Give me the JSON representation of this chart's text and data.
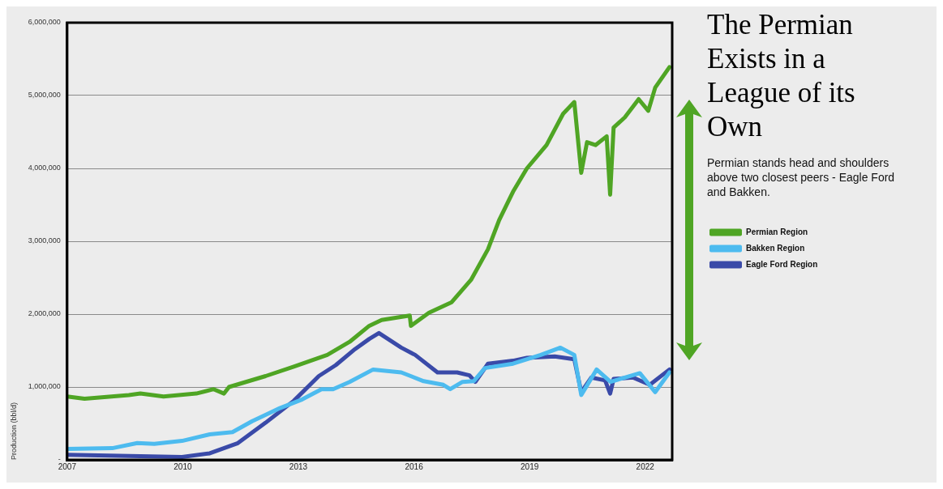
{
  "chart_data": {
    "type": "line",
    "title": "The Permian Exists in a League of its Own",
    "subtitle": "Permian stands head and shoulders above two closest peers - Eagle Ford and Bakken.",
    "ylabel": "Production (bbl/d)",
    "xlim": [
      2007,
      2022.7
    ],
    "xticks": [
      2007,
      2010,
      2013,
      2016,
      2019,
      2022
    ],
    "ylim": [
      0,
      6000000
    ],
    "yticks": [
      {
        "value": 0,
        "label": "-"
      },
      {
        "value": 1000000,
        "label": "1,000,000"
      },
      {
        "value": 2000000,
        "label": "2,000,000"
      },
      {
        "value": 3000000,
        "label": "3,000,000"
      },
      {
        "value": 4000000,
        "label": "4,000,000"
      },
      {
        "value": 5000000,
        "label": "5,000,000"
      },
      {
        "value": 6000000,
        "label": "6,000,000"
      }
    ],
    "grid": "y",
    "legend": "right",
    "marker": "none",
    "line_style": "solid",
    "series": [
      {
        "name": "Permian Region",
        "color": "#4fa524",
        "x": [
          2007.0,
          2007.45,
          2008.6,
          2008.9,
          2009.5,
          2010.35,
          2010.8,
          2011.07,
          2011.2,
          2012.15,
          2012.88,
          2013.75,
          2014.33,
          2014.84,
          2015.16,
          2015.89,
          2015.92,
          2016.39,
          2016.97,
          2017.48,
          2017.92,
          2018.21,
          2018.57,
          2018.93,
          2019.44,
          2019.87,
          2020.16,
          2020.34,
          2020.49,
          2020.71,
          2021.0,
          2021.09,
          2021.18,
          2021.47,
          2021.83,
          2022.08,
          2022.26,
          2022.63
        ],
        "values": [
          870000,
          840000,
          890000,
          910000,
          870000,
          910000,
          970000,
          910000,
          1000000,
          1150000,
          1280000,
          1440000,
          1620000,
          1840000,
          1920000,
          1980000,
          1840000,
          2020000,
          2160000,
          2470000,
          2890000,
          3290000,
          3680000,
          4000000,
          4320000,
          4750000,
          4910000,
          3940000,
          4360000,
          4320000,
          4440000,
          3640000,
          4560000,
          4700000,
          4950000,
          4790000,
          5110000,
          5390000
        ]
      },
      {
        "name": "Bakken Region",
        "color": "#4dbbef",
        "x": [
          2007.0,
          2008.17,
          2008.82,
          2009.26,
          2009.98,
          2010.7,
          2011.29,
          2011.8,
          2012.52,
          2013.1,
          2013.6,
          2013.9,
          2014.33,
          2014.94,
          2015.67,
          2016.25,
          2016.76,
          2016.94,
          2017.26,
          2017.55,
          2017.84,
          2018.57,
          2019.29,
          2019.8,
          2020.16,
          2020.34,
          2020.74,
          2021.1,
          2021.47,
          2021.86,
          2022.26,
          2022.63
        ],
        "values": [
          150000,
          160000,
          230000,
          220000,
          260000,
          350000,
          380000,
          530000,
          710000,
          830000,
          970000,
          970000,
          1070000,
          1240000,
          1200000,
          1080000,
          1030000,
          970000,
          1070000,
          1080000,
          1260000,
          1320000,
          1440000,
          1540000,
          1440000,
          890000,
          1240000,
          1070000,
          1130000,
          1190000,
          930000,
          1200000
        ]
      },
      {
        "name": "Eagle Ford Region",
        "color": "#3a4aa8",
        "x": [
          2007.0,
          2008.9,
          2009.98,
          2010.7,
          2011.43,
          2012.15,
          2012.88,
          2013.53,
          2013.97,
          2014.47,
          2014.84,
          2015.09,
          2015.67,
          2016.03,
          2016.61,
          2017.12,
          2017.44,
          2017.59,
          2017.92,
          2018.57,
          2018.93,
          2019.65,
          2020.16,
          2020.34,
          2020.6,
          2020.96,
          2021.09,
          2021.18,
          2021.68,
          2022.12,
          2022.63
        ],
        "values": [
          70000,
          50000,
          40000,
          90000,
          230000,
          510000,
          810000,
          1150000,
          1300000,
          1520000,
          1660000,
          1740000,
          1540000,
          1440000,
          1200000,
          1200000,
          1160000,
          1070000,
          1320000,
          1360000,
          1400000,
          1420000,
          1380000,
          930000,
          1130000,
          1090000,
          910000,
          1110000,
          1130000,
          1030000,
          1240000
        ]
      }
    ]
  }
}
